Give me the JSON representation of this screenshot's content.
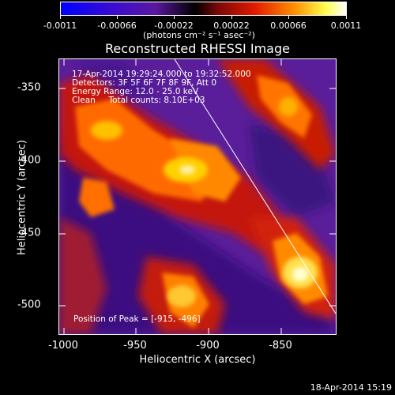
{
  "colorbar": {
    "tick_labels": [
      "-0.0011",
      "-0.00066",
      "-0.00022",
      "0.00022",
      "0.00066",
      "0.0011"
    ],
    "unit_label": "(photons cm⁻² s⁻¹ asec⁻²)"
  },
  "plot": {
    "title": "Reconstructed RHESSI Image",
    "info_lines": [
      "17-Apr-2014 19:29:24.000 to 19:32:52.000",
      "Detectors: 3F 5F 6F 7F 8F 9F, Att 0",
      "Energy Range: 12.0 - 25.0 keV",
      "Clean     Total counts: 8.10E+03"
    ],
    "peak_label": "Position of Peak = [-915, -496]",
    "xlabel": "Heliocentric X (arcsec)",
    "ylabel": "Heliocentric Y (arcsec)",
    "x_ticks": [
      "-1000",
      "-950",
      "-900",
      "-850"
    ],
    "y_ticks": [
      "-350",
      "-400",
      "-450",
      "-500"
    ]
  },
  "chart_data": {
    "type": "heatmap",
    "title": "Reconstructed RHESSI Image",
    "xlabel": "Heliocentric X (arcsec)",
    "ylabel": "Heliocentric Y (arcsec)",
    "xlim": [
      -1000,
      -810
    ],
    "ylim": [
      -520,
      -330
    ],
    "x_ticks": [
      -1000,
      -950,
      -900,
      -850
    ],
    "y_ticks": [
      -350,
      -400,
      -450,
      -500
    ],
    "colorbar_range": [
      -0.0011,
      0.0011
    ],
    "colormap": [
      "#0000ff",
      "#4000c0",
      "#6a1fa0",
      "#000000",
      "#b01010",
      "#ff4000",
      "#ffa000",
      "#ffff80",
      "#ffffff"
    ],
    "peak": [
      -915,
      -496
    ]
  },
  "footer": {
    "timestamp": "18-Apr-2014 15:19"
  }
}
